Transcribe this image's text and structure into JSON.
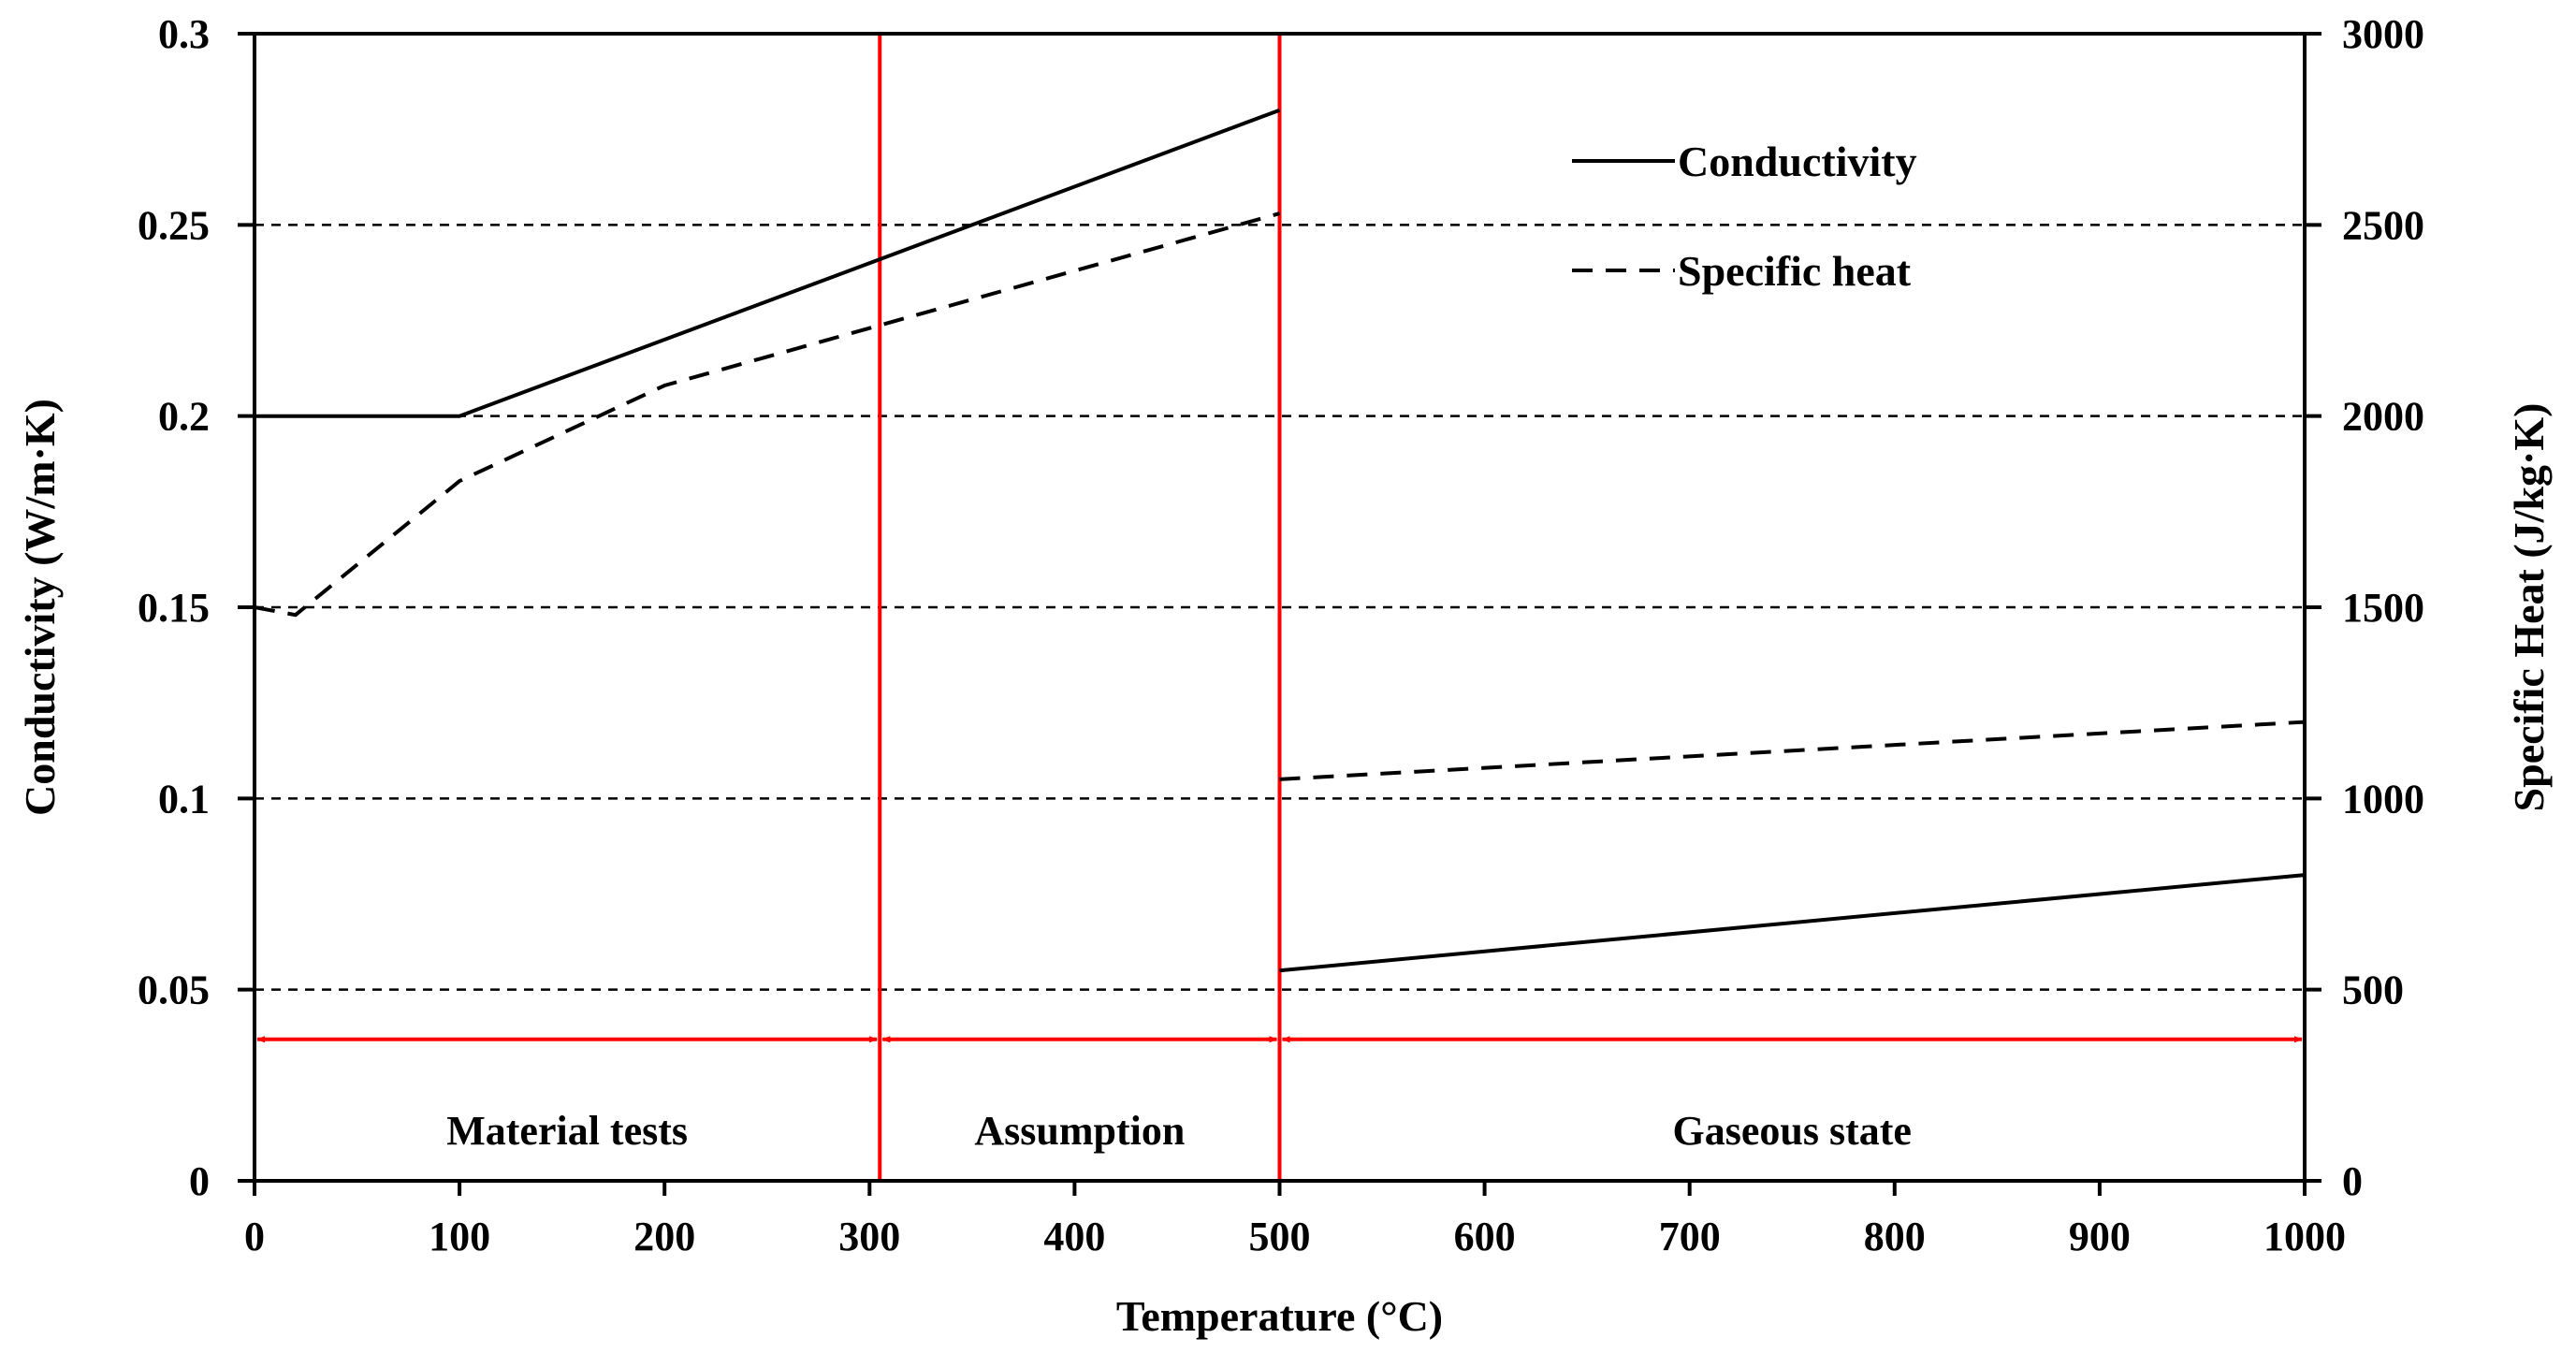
{
  "chart_data": {
    "type": "line",
    "title": "",
    "xlabel": "Temperature (°C)",
    "ylabel": "Conductivity (W/m·K)",
    "y2label": "Specific Heat (J/kg·K)",
    "xlim": [
      0,
      1000
    ],
    "ylim": [
      0,
      0.3
    ],
    "y2lim": [
      0,
      3000
    ],
    "x_ticks": [
      "0",
      "100",
      "200",
      "300",
      "400",
      "500",
      "600",
      "700",
      "800",
      "900",
      "1000"
    ],
    "y_ticks": [
      "0",
      "0.05",
      "0.1",
      "0.15",
      "0.2",
      "0.25",
      "0.3"
    ],
    "y2_ticks": [
      "0",
      "500",
      "1000",
      "1500",
      "2000",
      "2500",
      "3000"
    ],
    "grid": "horizontal dashed",
    "legend_position": "top-right",
    "series": [
      {
        "name": "Conductivity",
        "axis": "left",
        "style": "solid",
        "points": [
          [
            0,
            0.2
          ],
          [
            100,
            0.2
          ],
          [
            500,
            0.28
          ],
          [
            500,
            0.055
          ],
          [
            1000,
            0.08
          ]
        ]
      },
      {
        "name": "Specific heat",
        "axis": "right",
        "style": "dashed",
        "points": [
          [
            0,
            1500
          ],
          [
            20,
            1480
          ],
          [
            100,
            1830
          ],
          [
            200,
            2080
          ],
          [
            300,
            2230
          ],
          [
            400,
            2380
          ],
          [
            500,
            2530
          ],
          [
            500,
            1050
          ],
          [
            1000,
            1200
          ]
        ]
      }
    ],
    "vertical_lines": [
      305,
      500
    ],
    "regions": [
      {
        "label": "Material tests",
        "from": 0,
        "to": 305
      },
      {
        "label": "Assumption",
        "from": 305,
        "to": 500
      },
      {
        "label": "Gaseous state",
        "from": 500,
        "to": 1000
      }
    ],
    "colors": {
      "axis": "#000000",
      "marker": "#ff0000"
    }
  }
}
